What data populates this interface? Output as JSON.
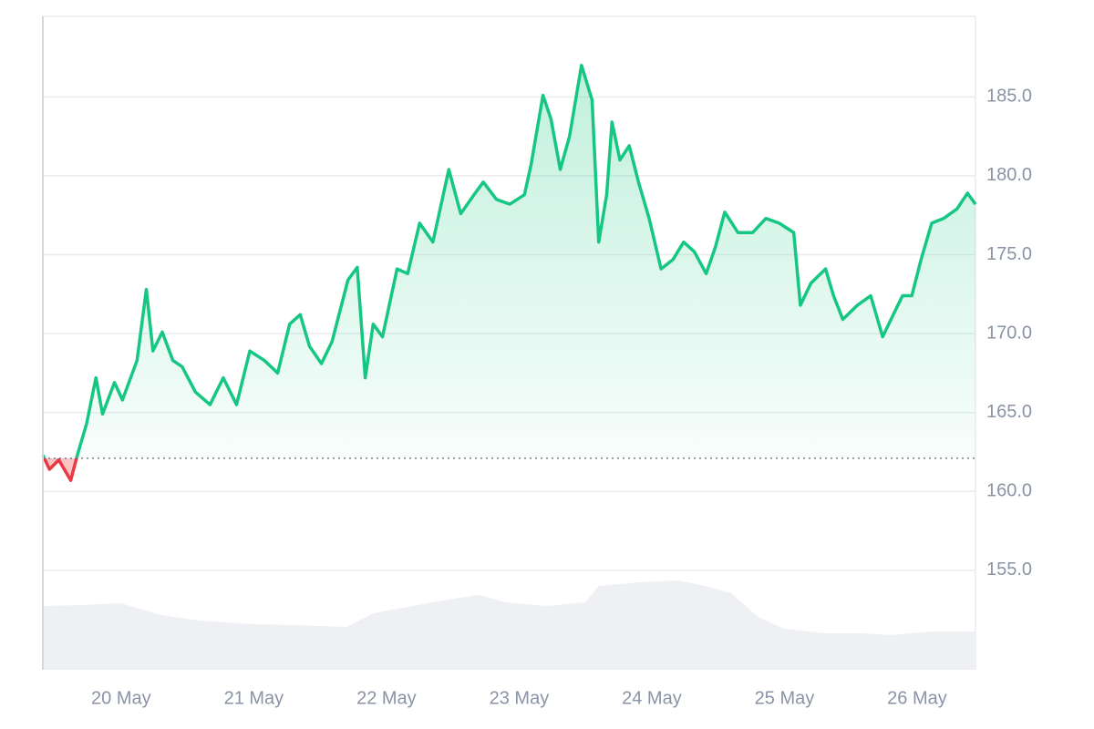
{
  "chart_data": {
    "type": "line",
    "x": [
      19.41,
      19.46,
      19.53,
      19.62,
      19.67,
      19.74,
      19.81,
      19.86,
      19.95,
      20.01,
      20.12,
      20.19,
      20.24,
      20.31,
      20.39,
      20.46,
      20.56,
      20.67,
      20.77,
      20.87,
      20.97,
      21.08,
      21.18,
      21.27,
      21.35,
      21.42,
      21.51,
      21.59,
      21.71,
      21.78,
      21.84,
      21.9,
      21.97,
      22.08,
      22.16,
      22.25,
      22.35,
      22.47,
      22.56,
      22.66,
      22.73,
      22.83,
      22.93,
      23.04,
      23.09,
      23.18,
      23.24,
      23.31,
      23.38,
      23.47,
      23.55,
      23.6,
      23.66,
      23.7,
      23.76,
      23.83,
      23.9,
      23.98,
      24.07,
      24.16,
      24.24,
      24.32,
      24.41,
      24.48,
      24.55,
      24.65,
      24.76,
      24.86,
      24.96,
      25.07,
      25.12,
      25.2,
      25.31,
      25.37,
      25.44,
      25.55,
      25.65,
      25.74,
      25.82,
      25.89,
      25.96,
      26.03,
      26.11,
      26.2,
      26.3,
      26.38,
      26.44
    ],
    "series": [
      {
        "color": "#16c784",
        "below_color": "#ea3943",
        "values": [
          162.3,
          161.4,
          162.0,
          160.7,
          162.3,
          164.3,
          167.2,
          164.9,
          166.9,
          165.8,
          168.3,
          172.8,
          168.9,
          170.1,
          168.3,
          167.9,
          166.3,
          165.5,
          167.2,
          165.5,
          168.9,
          168.3,
          167.5,
          170.6,
          171.2,
          169.2,
          168.1,
          169.5,
          173.4,
          174.2,
          167.2,
          170.6,
          169.8,
          174.1,
          173.8,
          177.0,
          175.8,
          180.4,
          177.6,
          178.8,
          179.6,
          178.5,
          178.2,
          178.8,
          180.7,
          185.1,
          183.6,
          180.4,
          182.5,
          187.0,
          184.8,
          175.8,
          178.8,
          183.4,
          181.0,
          181.9,
          179.6,
          177.3,
          174.1,
          174.7,
          175.8,
          175.2,
          173.8,
          175.5,
          177.7,
          176.4,
          176.4,
          177.3,
          177.0,
          176.4,
          171.8,
          173.2,
          174.1,
          172.4,
          170.9,
          171.8,
          172.4,
          169.8,
          171.2,
          172.4,
          172.4,
          174.7,
          177.0,
          177.3,
          177.9,
          178.9,
          178.2
        ]
      }
    ],
    "baseline": 162.1,
    "volume": {
      "color": "#eef0f3",
      "x": [
        19.41,
        19.7,
        20.0,
        20.3,
        20.6,
        21.0,
        21.3,
        21.7,
        21.9,
        22.2,
        22.5,
        22.7,
        22.9,
        23.2,
        23.5,
        23.6,
        23.9,
        24.2,
        24.4,
        24.6,
        24.8,
        25.0,
        25.3,
        25.6,
        25.8,
        26.1,
        26.44
      ],
      "values": [
        70,
        71,
        73,
        60,
        54,
        50,
        49,
        47,
        62,
        70,
        78,
        82,
        74,
        70,
        74,
        92,
        96,
        98,
        92,
        84,
        58,
        45,
        40,
        40,
        38,
        42,
        42
      ],
      "lim": [
        0,
        100
      ]
    },
    "xlim": [
      19.41,
      26.44
    ],
    "ylim": [
      148.7,
      190.1
    ],
    "xticks": [
      {
        "value": 20,
        "label": "20 May"
      },
      {
        "value": 21,
        "label": "21 May"
      },
      {
        "value": 22,
        "label": "22 May"
      },
      {
        "value": 23,
        "label": "23 May"
      },
      {
        "value": 24,
        "label": "24 May"
      },
      {
        "value": 25,
        "label": "25 May"
      },
      {
        "value": 26,
        "label": "26 May"
      }
    ],
    "yticks": [
      {
        "value": 155,
        "label": "155.0"
      },
      {
        "value": 160,
        "label": "160.0"
      },
      {
        "value": 165,
        "label": "165.0"
      },
      {
        "value": 170,
        "label": "170.0"
      },
      {
        "value": 175,
        "label": "175.0"
      },
      {
        "value": 180,
        "label": "180.0"
      },
      {
        "value": 185,
        "label": "185.0"
      }
    ],
    "grid": true
  }
}
